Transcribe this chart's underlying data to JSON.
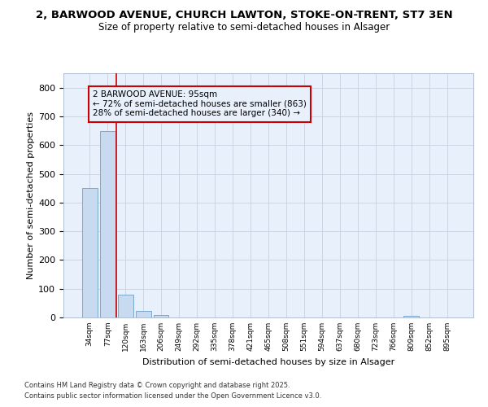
{
  "title_line1": "2, BARWOOD AVENUE, CHURCH LAWTON, STOKE-ON-TRENT, ST7 3EN",
  "title_line2": "Size of property relative to semi-detached houses in Alsager",
  "categories": [
    "34sqm",
    "77sqm",
    "120sqm",
    "163sqm",
    "206sqm",
    "249sqm",
    "292sqm",
    "335sqm",
    "378sqm",
    "421sqm",
    "465sqm",
    "508sqm",
    "551sqm",
    "594sqm",
    "637sqm",
    "680sqm",
    "723sqm",
    "766sqm",
    "809sqm",
    "852sqm",
    "895sqm"
  ],
  "values": [
    450,
    648,
    80,
    22,
    8,
    0,
    0,
    0,
    0,
    0,
    0,
    0,
    0,
    0,
    0,
    0,
    0,
    0,
    7,
    0,
    0
  ],
  "bar_color": "#c8daf0",
  "bar_edge_color": "#7aaad0",
  "ylabel": "Number of semi-detached properties",
  "xlabel": "Distribution of semi-detached houses by size in Alsager",
  "ylim": [
    0,
    850
  ],
  "yticks": [
    0,
    100,
    200,
    300,
    400,
    500,
    600,
    700,
    800
  ],
  "red_line_x": 1.5,
  "annotation_text": "2 BARWOOD AVENUE: 95sqm\n← 72% of semi-detached houses are smaller (863)\n28% of semi-detached houses are larger (340) →",
  "footer_line1": "Contains HM Land Registry data © Crown copyright and database right 2025.",
  "footer_line2": "Contains public sector information licensed under the Open Government Licence v3.0.",
  "background_color": "#ffffff",
  "plot_bg_color": "#e8f0fc",
  "grid_color": "#c8d0e0"
}
